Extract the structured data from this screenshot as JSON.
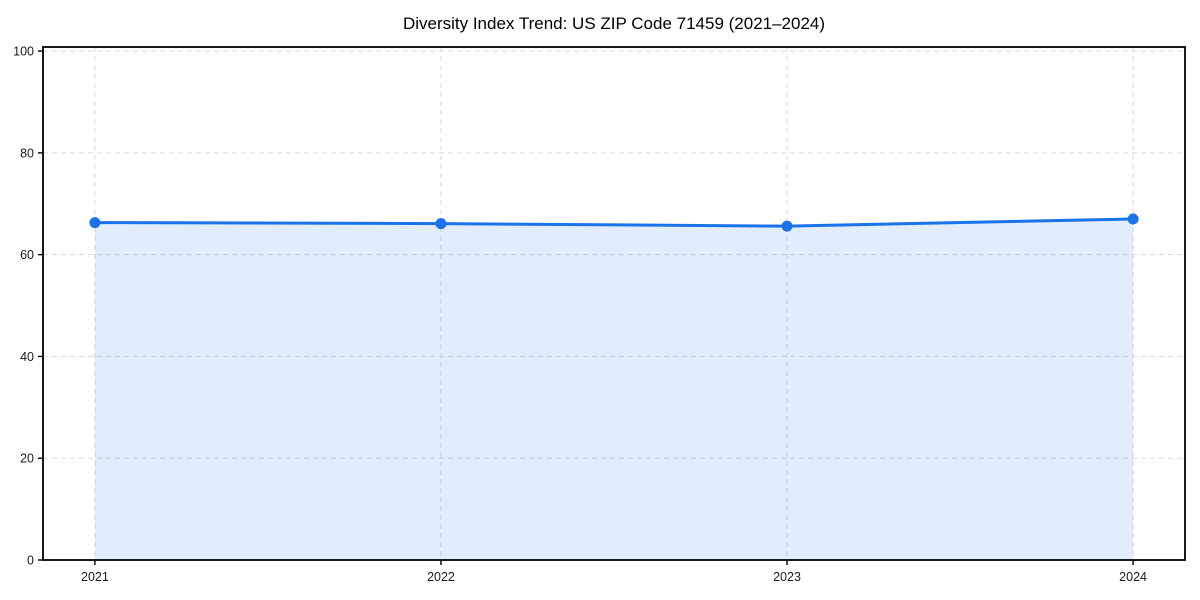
{
  "chart_data": {
    "type": "area",
    "title": "Diversity Index Trend: US ZIP Code 71459 (2021–2024)",
    "x": [
      2021,
      2022,
      2023,
      2024
    ],
    "series": [
      {
        "name": "Diversity Index",
        "values": [
          66.3,
          66.1,
          65.6,
          67.0
        ]
      }
    ],
    "xlabel": "",
    "ylabel": "",
    "xticks": [
      2021,
      2022,
      2023,
      2024
    ],
    "yticks": [
      0,
      20,
      40,
      60,
      80,
      100
    ],
    "xlim": [
      2020.85,
      2024.15
    ],
    "ylim": [
      0,
      100.8
    ],
    "grid": true,
    "grid_style": "dashed",
    "legend": false,
    "colors": {
      "line": "#1a73e8",
      "marker": "#1a73e8",
      "fill": "rgba(26,115,232,0.13)",
      "grid": "#d9d9d9",
      "spine": "#000000",
      "tick_text": "#1a1a1a",
      "background": "#ffffff"
    }
  }
}
